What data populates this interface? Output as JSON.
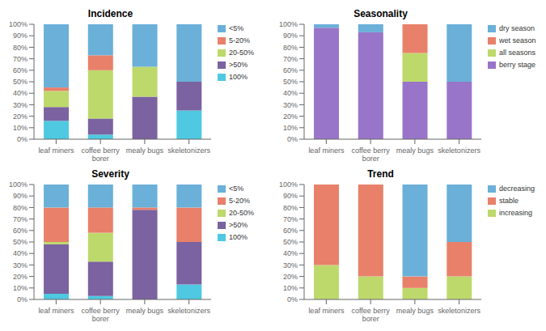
{
  "chart_data": [
    {
      "type": "bar",
      "title": "Incidence",
      "categories": [
        "leaf miners",
        "coffee berry\nborer",
        "mealy bugs",
        "skeletonizers"
      ],
      "stacked": true,
      "grid": false,
      "legend": "right",
      "ylim": [
        0,
        100
      ],
      "yticks": [
        {
          "value": 0,
          "label": "0%"
        },
        {
          "value": 10,
          "label": "10%"
        },
        {
          "value": 20,
          "label": "20%"
        },
        {
          "value": 30,
          "label": "30%"
        },
        {
          "value": 40,
          "label": "40%"
        },
        {
          "value": 50,
          "label": "50%"
        },
        {
          "value": 60,
          "label": "60%"
        },
        {
          "value": 70,
          "label": "70%"
        },
        {
          "value": 80,
          "label": "80%"
        },
        {
          "value": 90,
          "label": "90%"
        },
        {
          "value": 100,
          "label": "100%"
        }
      ],
      "series": [
        {
          "name": "100%",
          "color": "#4ec9e1",
          "values": [
            16,
            4,
            0,
            25
          ]
        },
        {
          "name": ">50%",
          "color": "#7b62a0",
          "values": [
            12,
            14,
            37,
            25
          ]
        },
        {
          "name": "20-50%",
          "color": "#bdd96c",
          "values": [
            14,
            42,
            26,
            0
          ]
        },
        {
          "name": "5-20%",
          "color": "#e8806a",
          "values": [
            3,
            13,
            0,
            0
          ]
        },
        {
          "name": "<5%",
          "color": "#6ab0d8",
          "values": [
            55,
            27,
            37,
            50
          ]
        }
      ]
    },
    {
      "type": "bar",
      "title": "Seasonality",
      "categories": [
        "leaf miners",
        "coffee berry\nborer",
        "mealy bugs",
        "skeletonizers"
      ],
      "stacked": true,
      "grid": false,
      "legend": "right",
      "ylim": [
        0,
        100
      ],
      "yticks": [
        {
          "value": 0,
          "label": "0%"
        },
        {
          "value": 10,
          "label": "10%"
        },
        {
          "value": 20,
          "label": "20%"
        },
        {
          "value": 30,
          "label": "30%"
        },
        {
          "value": 40,
          "label": "40%"
        },
        {
          "value": 50,
          "label": "50%"
        },
        {
          "value": 60,
          "label": "60%"
        },
        {
          "value": 70,
          "label": "70%"
        },
        {
          "value": 80,
          "label": "80%"
        },
        {
          "value": 90,
          "label": "90%"
        },
        {
          "value": 100,
          "label": "100%"
        }
      ],
      "series": [
        {
          "name": "berry stage",
          "color": "#9975c9",
          "values": [
            97,
            93,
            50,
            50
          ]
        },
        {
          "name": "all seasons",
          "color": "#bdd96c",
          "values": [
            0,
            0,
            25,
            0
          ]
        },
        {
          "name": "wet season",
          "color": "#e8806a",
          "values": [
            0,
            0,
            25,
            0
          ]
        },
        {
          "name": "dry season",
          "color": "#6ab0d8",
          "values": [
            3,
            7,
            0,
            50
          ]
        }
      ]
    },
    {
      "type": "bar",
      "title": "Severity",
      "categories": [
        "leaf miners",
        "coffee berry\nborer",
        "mealy bugs",
        "skeletonizers"
      ],
      "stacked": true,
      "grid": false,
      "legend": "right",
      "ylim": [
        0,
        100
      ],
      "yticks": [
        {
          "value": 0,
          "label": "0%"
        },
        {
          "value": 10,
          "label": "10%"
        },
        {
          "value": 20,
          "label": "20%"
        },
        {
          "value": 30,
          "label": "30%"
        },
        {
          "value": 40,
          "label": "40%"
        },
        {
          "value": 50,
          "label": "50%"
        },
        {
          "value": 60,
          "label": "60%"
        },
        {
          "value": 70,
          "label": "70%"
        },
        {
          "value": 80,
          "label": "80%"
        },
        {
          "value": 90,
          "label": "90%"
        },
        {
          "value": 100,
          "label": "100%"
        }
      ],
      "series": [
        {
          "name": "100%",
          "color": "#4ec9e1",
          "values": [
            5,
            3,
            0,
            13
          ]
        },
        {
          "name": ">50%",
          "color": "#7b62a0",
          "values": [
            43,
            30,
            78,
            37
          ]
        },
        {
          "name": "20-50%",
          "color": "#bdd96c",
          "values": [
            2,
            25,
            0,
            0
          ]
        },
        {
          "name": "5-20%",
          "color": "#e8806a",
          "values": [
            30,
            22,
            2,
            30
          ]
        },
        {
          "name": "<5%",
          "color": "#6ab0d8",
          "values": [
            20,
            20,
            20,
            20
          ]
        }
      ]
    },
    {
      "type": "bar",
      "title": "Trend",
      "categories": [
        "leaf miners",
        "coffee berry\nborer",
        "mealy bugs",
        "skeletonizers"
      ],
      "stacked": true,
      "grid": false,
      "legend": "right",
      "ylim": [
        0,
        100
      ],
      "yticks": [
        {
          "value": 0,
          "label": "0%"
        },
        {
          "value": 10,
          "label": "10%"
        },
        {
          "value": 20,
          "label": "20%"
        },
        {
          "value": 30,
          "label": "30%"
        },
        {
          "value": 40,
          "label": "40%"
        },
        {
          "value": 50,
          "label": "50%"
        },
        {
          "value": 60,
          "label": "60%"
        },
        {
          "value": 70,
          "label": "70%"
        },
        {
          "value": 80,
          "label": "80%"
        },
        {
          "value": 90,
          "label": "90%"
        },
        {
          "value": 100,
          "label": "100%"
        }
      ],
      "series": [
        {
          "name": "increasing",
          "color": "#bdd96c",
          "values": [
            30,
            20,
            10,
            20
          ]
        },
        {
          "name": "stable",
          "color": "#e8806a",
          "values": [
            70,
            80,
            10,
            30
          ]
        },
        {
          "name": "decreasing",
          "color": "#6ab0d8",
          "values": [
            0,
            0,
            80,
            50
          ]
        }
      ]
    }
  ]
}
